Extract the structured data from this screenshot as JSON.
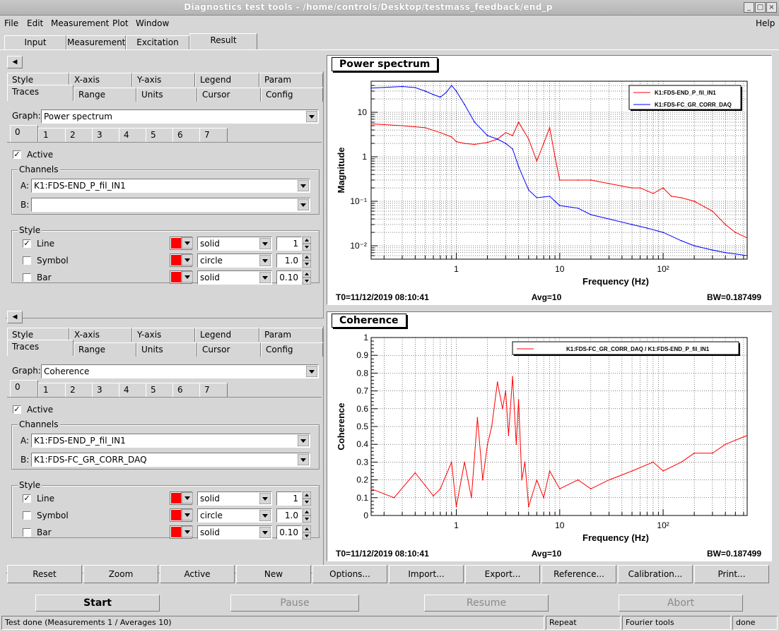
{
  "window": {
    "title": "Diagnostics test tools - /home/controls/Desktop/testmass_feedback/end_p"
  },
  "menu": {
    "items": [
      "File",
      "Edit",
      "Measurement",
      "Plot",
      "Window"
    ],
    "help": "Help"
  },
  "main_tabs": [
    "Input",
    "Measurement",
    "Excitation",
    "Result"
  ],
  "panels": [
    {
      "tabs_row1": [
        "Style",
        "X-axis",
        "Y-axis",
        "Legend",
        "Param"
      ],
      "tabs_row2": [
        "Traces",
        "Range",
        "Units",
        "Cursor",
        "Config"
      ],
      "graph_label": "Graph:",
      "graph_value": "Power spectrum",
      "trace_tabs": [
        "0",
        "1",
        "2",
        "3",
        "4",
        "5",
        "6",
        "7"
      ],
      "active_label": "Active",
      "channels_title": "Channels",
      "channel_a_label": "A:",
      "channel_a": "K1:FDS-END_P_fil_IN1",
      "channel_b_label": "B:",
      "channel_b": "",
      "style_title": "Style",
      "line_label": "Line",
      "line_style": "solid",
      "line_width": "1",
      "symbol_label": "Symbol",
      "symbol_style": "circle",
      "symbol_size": "1.0",
      "bar_label": "Bar",
      "bar_style": "solid",
      "bar_width": "0.10"
    },
    {
      "tabs_row1": [
        "Style",
        "X-axis",
        "Y-axis",
        "Legend",
        "Param"
      ],
      "tabs_row2": [
        "Traces",
        "Range",
        "Units",
        "Cursor",
        "Config"
      ],
      "graph_label": "Graph:",
      "graph_value": "Coherence",
      "trace_tabs": [
        "0",
        "1",
        "2",
        "3",
        "4",
        "5",
        "6",
        "7"
      ],
      "active_label": "Active",
      "channels_title": "Channels",
      "channel_a_label": "A:",
      "channel_a": "K1:FDS-END_P_fil_IN1",
      "channel_b_label": "B:",
      "channel_b": "K1:FDS-FC_GR_CORR_DAQ",
      "style_title": "Style",
      "line_label": "Line",
      "line_style": "solid",
      "line_width": "1",
      "symbol_label": "Symbol",
      "symbol_style": "circle",
      "symbol_size": "1.0",
      "bar_label": "Bar",
      "bar_style": "solid",
      "bar_width": "0.10"
    }
  ],
  "trace_color": "#ff0000",
  "chart_data": [
    {
      "type": "line",
      "title": "Power spectrum",
      "xlabel": "Frequency (Hz)",
      "ylabel": "Magnitude",
      "x_scale": "log",
      "y_scale": "log",
      "xlim": [
        0.15,
        650
      ],
      "ylim": [
        0.005,
        50
      ],
      "x_ticks": [
        "1",
        "10",
        "10²"
      ],
      "y_ticks": [
        "10⁻²",
        "10⁻¹",
        "1",
        "10"
      ],
      "grid": true,
      "legend_position": "top-right",
      "series": [
        {
          "name": "K1:FDS-END_P_fil_IN1",
          "color": "#ff0000",
          "x": [
            0.15,
            0.3,
            0.5,
            0.7,
            0.9,
            1.0,
            1.2,
            1.5,
            2.0,
            2.5,
            3.0,
            3.5,
            4.0,
            5.0,
            6.0,
            7.0,
            8.0,
            9.0,
            10,
            15,
            20,
            30,
            40,
            50,
            60,
            80,
            100,
            120,
            150,
            200,
            300,
            400,
            500,
            650
          ],
          "y": [
            5.5,
            5.0,
            4.5,
            3.5,
            2.8,
            2.2,
            2.0,
            1.9,
            2.1,
            2.5,
            3.5,
            3.0,
            6.0,
            2.5,
            0.8,
            2.0,
            4.5,
            1.0,
            0.3,
            0.3,
            0.3,
            0.25,
            0.22,
            0.2,
            0.2,
            0.15,
            0.2,
            0.13,
            0.12,
            0.1,
            0.06,
            0.03,
            0.02,
            0.015
          ]
        },
        {
          "name": "K1:FDS-FC_GR_CORR_DAQ",
          "color": "#0000ff",
          "x": [
            0.15,
            0.3,
            0.4,
            0.5,
            0.6,
            0.7,
            0.8,
            0.9,
            1.0,
            1.2,
            1.5,
            2.0,
            2.5,
            3.0,
            3.5,
            4.0,
            5.0,
            6.0,
            8.0,
            10,
            15,
            20,
            30,
            50,
            70,
            100,
            150,
            200,
            300,
            400,
            650
          ],
          "y": [
            35,
            38,
            36,
            30,
            25,
            22,
            28,
            40,
            30,
            15,
            6,
            3,
            2.5,
            2.0,
            1.5,
            0.6,
            0.18,
            0.12,
            0.13,
            0.08,
            0.07,
            0.05,
            0.04,
            0.03,
            0.025,
            0.02,
            0.013,
            0.01,
            0.008,
            0.007,
            0.006
          ]
        }
      ],
      "footer": {
        "t0": "T0=11/12/2019 08:10:41",
        "avg": "Avg=10",
        "bw": "BW=0.187499"
      }
    },
    {
      "type": "line",
      "title": "Coherence",
      "xlabel": "Frequency (Hz)",
      "ylabel": "Coherence",
      "x_scale": "log",
      "xlim": [
        0.15,
        650
      ],
      "ylim": [
        0,
        1
      ],
      "x_ticks": [
        "1",
        "10",
        "10²"
      ],
      "y_ticks": [
        "0",
        "0.1",
        "0.2",
        "0.3",
        "0.4",
        "0.5",
        "0.6",
        "0.7",
        "0.8",
        "0.9",
        "1"
      ],
      "grid": true,
      "legend_position": "top-right",
      "series": [
        {
          "name": "K1:FDS-FC_GR_CORR_DAQ / K1:FDS-END_P_fil_IN1",
          "color": "#ff0000",
          "x": [
            0.15,
            0.25,
            0.4,
            0.6,
            0.7,
            0.9,
            1.0,
            1.2,
            1.4,
            1.6,
            1.8,
            2.0,
            2.2,
            2.5,
            2.8,
            3.0,
            3.2,
            3.5,
            3.8,
            4.0,
            4.3,
            4.6,
            5.0,
            6.0,
            7.0,
            8.0,
            10,
            15,
            20,
            30,
            50,
            80,
            100,
            150,
            200,
            300,
            400,
            650
          ],
          "y": [
            0.15,
            0.1,
            0.24,
            0.11,
            0.15,
            0.3,
            0.05,
            0.3,
            0.1,
            0.55,
            0.2,
            0.4,
            0.5,
            0.75,
            0.6,
            0.7,
            0.45,
            0.78,
            0.4,
            0.65,
            0.2,
            0.3,
            0.05,
            0.2,
            0.1,
            0.25,
            0.15,
            0.2,
            0.15,
            0.2,
            0.25,
            0.3,
            0.25,
            0.3,
            0.35,
            0.35,
            0.4,
            0.45
          ]
        }
      ],
      "footer": {
        "t0": "T0=11/12/2019 08:10:41",
        "avg": "Avg=10",
        "bw": "BW=0.187499"
      }
    }
  ],
  "bottom_buttons": [
    "Reset",
    "Zoom",
    "Active",
    "New",
    "Options...",
    "Import...",
    "Export...",
    "Reference...",
    "Calibration...",
    "Print..."
  ],
  "big_buttons": [
    "Start",
    "Pause",
    "Resume",
    "Abort"
  ],
  "status": {
    "message": "Test done (Measurements 1 / Averages 10)",
    "mode": "Repeat",
    "tool": "Fourier tools",
    "state": "done"
  }
}
